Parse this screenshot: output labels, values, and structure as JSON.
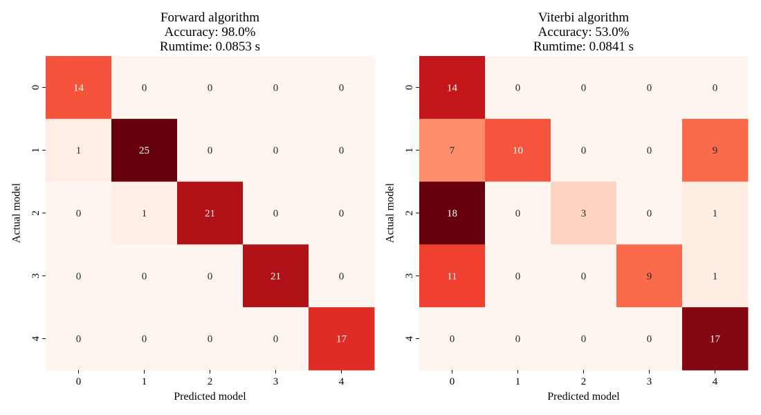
{
  "chart_data": [
    {
      "type": "heatmap",
      "title": [
        "Forward algorithm",
        "Accuracy: 98.0%",
        "Rumtime: 0.0853 s"
      ],
      "xlabel": "Predicted model",
      "ylabel": "Actual model",
      "x_categories": [
        "0",
        "1",
        "2",
        "3",
        "4"
      ],
      "y_categories": [
        "0",
        "1",
        "2",
        "3",
        "4"
      ],
      "values": [
        [
          14,
          0,
          0,
          0,
          0
        ],
        [
          1,
          25,
          0,
          0,
          0
        ],
        [
          0,
          1,
          21,
          0,
          0
        ],
        [
          0,
          0,
          0,
          21,
          0
        ],
        [
          0,
          0,
          0,
          0,
          17
        ]
      ],
      "colormap": "Reds",
      "colorbar": false,
      "annotated": true
    },
    {
      "type": "heatmap",
      "title": [
        "Viterbi algorithm",
        "Accuracy: 53.0%",
        "Rumtime: 0.0841 s"
      ],
      "xlabel": "Predicted model",
      "ylabel": "Actual model",
      "x_categories": [
        "0",
        "1",
        "2",
        "3",
        "4"
      ],
      "y_categories": [
        "0",
        "1",
        "2",
        "3",
        "4"
      ],
      "values": [
        [
          14,
          0,
          0,
          0,
          0
        ],
        [
          7,
          10,
          0,
          0,
          9
        ],
        [
          18,
          0,
          3,
          0,
          1
        ],
        [
          11,
          0,
          0,
          9,
          1
        ],
        [
          0,
          0,
          0,
          0,
          17
        ]
      ],
      "colormap": "Reds",
      "colorbar": false,
      "annotated": true
    }
  ]
}
